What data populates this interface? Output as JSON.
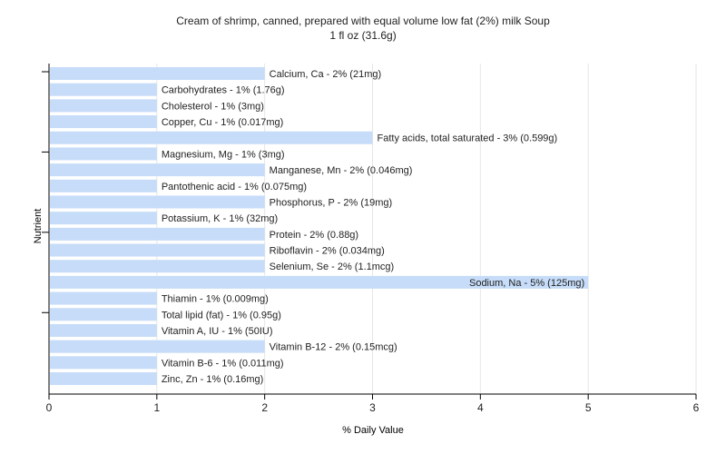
{
  "chart_data": {
    "type": "bar",
    "orientation": "horizontal",
    "title": "Cream of shrimp, canned, prepared with equal volume low fat (2%) milk Soup",
    "subtitle": "1 fl oz (31.6g)",
    "xlabel": "% Daily Value",
    "ylabel": "Nutrient",
    "xlim": [
      0,
      6
    ],
    "xticks": [
      0,
      1,
      2,
      3,
      4,
      5,
      6
    ],
    "grid": true,
    "bar_color": "#c6dcf8",
    "categories": [
      "Calcium, Ca",
      "Carbohydrates",
      "Cholesterol",
      "Copper, Cu",
      "Fatty acids, total saturated",
      "Magnesium, Mg",
      "Manganese, Mn",
      "Pantothenic acid",
      "Phosphorus, P",
      "Potassium, K",
      "Protein",
      "Riboflavin",
      "Selenium, Se",
      "Sodium, Na",
      "Thiamin",
      "Total lipid (fat)",
      "Vitamin A, IU",
      "Vitamin B-12",
      "Vitamin B-6",
      "Zinc, Zn"
    ],
    "values": [
      2,
      1,
      1,
      1,
      3,
      1,
      2,
      1,
      2,
      1,
      2,
      2,
      2,
      5,
      1,
      1,
      1,
      2,
      1,
      1
    ],
    "labels": [
      "Calcium, Ca - 2% (21mg)",
      "Carbohydrates - 1% (1.76g)",
      "Cholesterol - 1% (3mg)",
      "Copper, Cu - 1% (0.017mg)",
      "Fatty acids, total saturated - 3% (0.599g)",
      "Magnesium, Mg - 1% (3mg)",
      "Manganese, Mn - 2% (0.046mg)",
      "Pantothenic acid - 1% (0.075mg)",
      "Phosphorus, P - 2% (19mg)",
      "Potassium, K - 1% (32mg)",
      "Protein - 2% (0.88g)",
      "Riboflavin - 2% (0.034mg)",
      "Selenium, Se - 2% (1.1mcg)",
      "Sodium, Na - 5% (125mg)",
      "Thiamin - 1% (0.009mg)",
      "Total lipid (fat) - 1% (0.95g)",
      "Vitamin A, IU - 1% (50IU)",
      "Vitamin B-12 - 2% (0.15mcg)",
      "Vitamin B-6 - 1% (0.011mg)",
      "Zinc, Zn - 1% (0.16mg)"
    ]
  }
}
